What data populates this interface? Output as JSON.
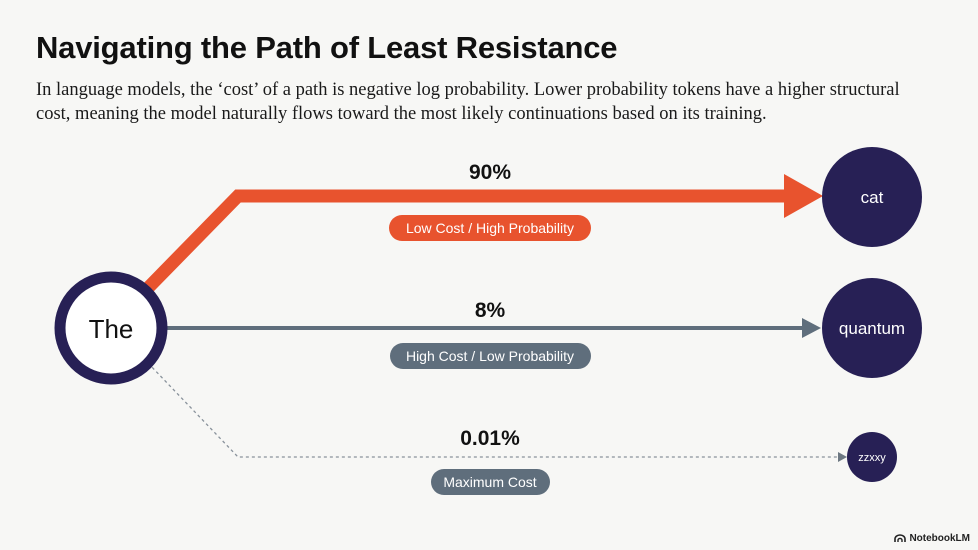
{
  "header": {
    "title": "Navigating the Path of Least Resistance",
    "subtitle": "In language models, the ‘cost’ of a path is negative log probability. Lower probability tokens have a higher structural cost, meaning the model naturally flows toward the most likely continuations based on its training."
  },
  "source": {
    "label": "The"
  },
  "paths": [
    {
      "target": "cat",
      "probability": "90%",
      "probability_value": 0.9,
      "badge": "Low Cost / High Probability",
      "color": "#e8532e"
    },
    {
      "target": "quantum",
      "probability": "8%",
      "probability_value": 0.08,
      "badge": "High Cost / Low Probability",
      "color": "#5f6e7c"
    },
    {
      "target": "zzxxy",
      "probability": "0.01%",
      "probability_value": 0.0001,
      "badge": "Maximum Cost",
      "color": "#5f6e7c"
    }
  ],
  "colors": {
    "node_fill": "#272055",
    "source_ring": "#272055",
    "high_path": "#e8532e",
    "low_path": "#5f6e7c",
    "dotted_path": "#8a939c"
  },
  "brand": {
    "name": "NotebookLM",
    "icon": "notebooklm-logo-icon"
  }
}
